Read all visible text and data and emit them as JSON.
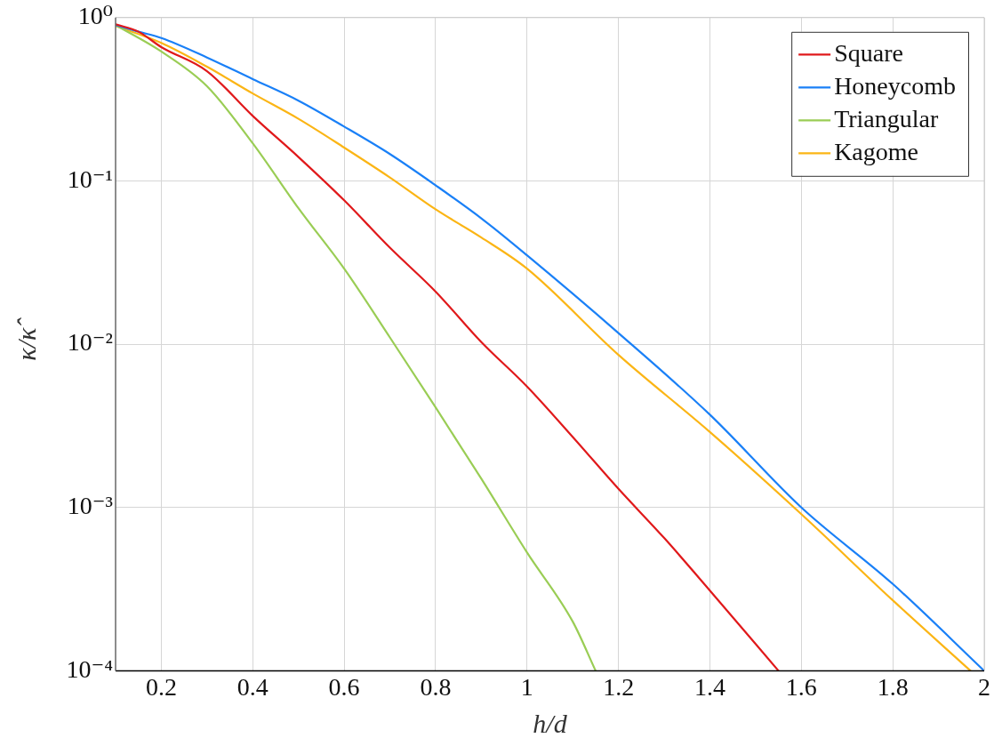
{
  "chart_data": {
    "type": "line",
    "xlabel": "h/d",
    "ylabel": "κ/κ̂",
    "log": "y",
    "grid": true,
    "legend": "top right",
    "marker": "none",
    "line_style": "solid",
    "xlim": [
      0.1,
      2
    ],
    "xticks": [
      0.2,
      0.4,
      0.6,
      0.8,
      1,
      1.2,
      1.4,
      1.6,
      1.8,
      2
    ],
    "ylim": [
      0.0001,
      1
    ],
    "yticks": [
      {
        "value": 0.0001,
        "label": "10⁻⁴"
      },
      {
        "value": 0.001,
        "label": "10⁻³"
      },
      {
        "value": 0.01,
        "label": "10⁻²"
      },
      {
        "value": 0.1,
        "label": "10⁻¹"
      },
      {
        "value": 1,
        "label": "10⁰"
      }
    ],
    "series": [
      {
        "name": "Square",
        "color": "#e0191b",
        "x": [
          0.1,
          0.15,
          0.2,
          0.3,
          0.4,
          0.5,
          0.6,
          0.7,
          0.8,
          0.9,
          1,
          1.1,
          1.2,
          1.3,
          1.4,
          1.55
        ],
        "values": [
          0.91,
          0.82,
          0.66,
          0.47,
          0.25,
          0.14,
          0.076,
          0.039,
          0.021,
          0.0103,
          0.0055,
          0.0027,
          0.0013,
          0.00065,
          0.00031,
          0.0001
        ]
      },
      {
        "name": "Honeycomb",
        "color": "#1a80f7",
        "x": [
          0.1,
          0.15,
          0.2,
          0.3,
          0.4,
          0.5,
          0.6,
          0.7,
          0.8,
          0.9,
          1,
          1.2,
          1.4,
          1.6,
          1.8,
          2
        ],
        "values": [
          0.9,
          0.82,
          0.75,
          0.57,
          0.42,
          0.31,
          0.215,
          0.146,
          0.094,
          0.059,
          0.035,
          0.0117,
          0.0037,
          0.001,
          0.00034,
          0.0001
        ]
      },
      {
        "name": "Triangular",
        "color": "#9acd55",
        "x": [
          0.1,
          0.2,
          0.3,
          0.4,
          0.5,
          0.6,
          0.7,
          0.8,
          0.9,
          1,
          1.1,
          1.15
        ],
        "values": [
          0.9,
          0.62,
          0.38,
          0.17,
          0.068,
          0.029,
          0.011,
          0.0041,
          0.0015,
          0.00053,
          0.0002,
          0.0001
        ]
      },
      {
        "name": "Kagome",
        "color": "#fbb515",
        "x": [
          0.1,
          0.2,
          0.3,
          0.4,
          0.5,
          0.6,
          0.7,
          0.8,
          0.9,
          1,
          1.2,
          1.4,
          1.6,
          1.8,
          1.97
        ],
        "values": [
          0.89,
          0.7,
          0.5,
          0.343,
          0.24,
          0.16,
          0.105,
          0.067,
          0.045,
          0.029,
          0.0086,
          0.0029,
          0.00091,
          0.00027,
          0.0001
        ]
      }
    ]
  }
}
